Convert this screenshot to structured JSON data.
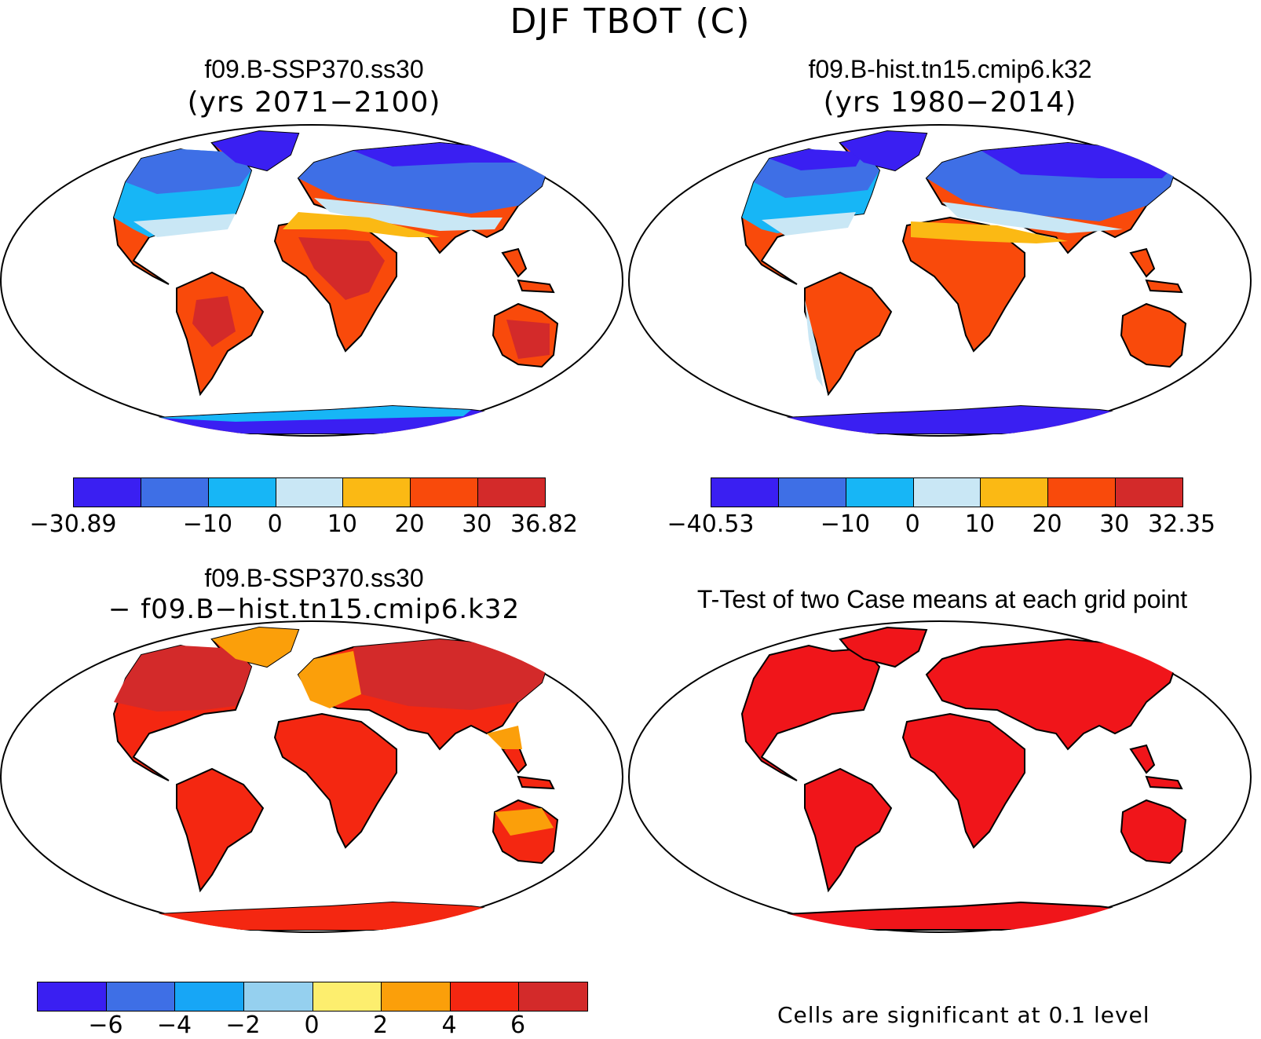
{
  "main_title": "DJF TBOT (C)",
  "panels": [
    {
      "title": "f09.B-SSP370.ss30",
      "subtitle": "(yrs 2071−2100)",
      "colorbar": {
        "colors": [
          "#3a1ff2",
          "#3e6fe6",
          "#17b6f6",
          "#c9e7f5",
          "#fbb914",
          "#f94a0b",
          "#d32a2a"
        ],
        "labels": [
          "−30.89",
          "−10",
          "0",
          "10",
          "20",
          "30",
          "36.82"
        ]
      }
    },
    {
      "title": "f09.B-hist.tn15.cmip6.k32",
      "subtitle": "(yrs 1980−2014)",
      "colorbar": {
        "colors": [
          "#3a1ff2",
          "#3e6fe6",
          "#17b6f6",
          "#c9e7f5",
          "#fbb914",
          "#f94a0b",
          "#d32a2a"
        ],
        "labels": [
          "−40.53",
          "−10",
          "0",
          "10",
          "20",
          "30",
          "32.35"
        ]
      }
    },
    {
      "title": "f09.B-SSP370.ss30",
      "subtitle": "− f09.B−hist.tn15.cmip6.k32",
      "colorbar": {
        "colors": [
          "#3a1ff2",
          "#3e6fe6",
          "#17a6f6",
          "#95d0ef",
          "#fdee6e",
          "#fb9f0a",
          "#f42711",
          "#d32a2a"
        ],
        "labels": [
          "−6",
          "−4",
          "−2",
          "0",
          "2",
          "4",
          "6"
        ]
      }
    },
    {
      "title": "T-Test of two Case means at each grid point",
      "footer": "Cells are significant at 0.1 level"
    }
  ]
}
